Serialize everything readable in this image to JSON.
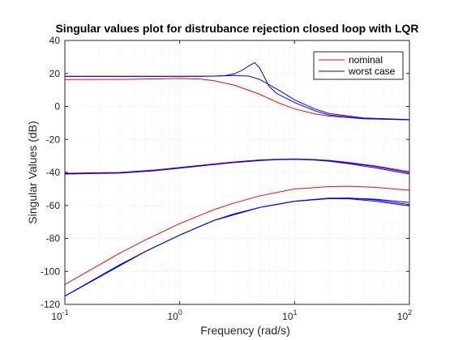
{
  "chart_data": {
    "type": "line",
    "title": "Singular values plot for distrubance rejection closed loop with LQR",
    "xlabel": "Frequency (rad/s)",
    "ylabel": "Singular Values (dB)",
    "xscale": "log",
    "xlim": [
      0.1,
      100
    ],
    "ylim": [
      -120,
      40
    ],
    "xticks": [
      0.1,
      1,
      10,
      100
    ],
    "xtick_labels": [
      {
        "base": "10",
        "exp": "-1"
      },
      {
        "base": "10",
        "exp": "0"
      },
      {
        "base": "10",
        "exp": "1"
      },
      {
        "base": "10",
        "exp": "2"
      }
    ],
    "yticks": [
      -120,
      -100,
      -80,
      -60,
      -40,
      -20,
      0,
      20,
      40
    ],
    "yticks_labels": [
      "-120",
      "-100",
      "-80",
      "-60",
      "-40",
      "-20",
      "0",
      "20",
      "40"
    ],
    "grid": true,
    "minor_grid": true,
    "legend_position": "top-right",
    "legend": [
      {
        "label": "nominal",
        "color": "#ff0000"
      },
      {
        "label": "worst case",
        "color": "#0000ff"
      }
    ],
    "series": [
      {
        "name": "nominal",
        "color": "#ff0000",
        "x": [
          0.1,
          0.3,
          0.6,
          1,
          1.5,
          2,
          3,
          5,
          7,
          10,
          15,
          20,
          40,
          100
        ],
        "y": [
          16.3,
          16.4,
          16.7,
          17.0,
          16.6,
          15.6,
          12.9,
          7.3,
          2.6,
          -1.5,
          -4.5,
          -5.8,
          -7.5,
          -8.1
        ]
      },
      {
        "name": "worst case",
        "color": "#0000ff",
        "x": [
          0.1,
          0.3,
          0.6,
          1,
          1.5,
          2,
          2.5,
          3,
          3.5,
          4,
          4.5,
          5,
          6,
          7,
          10,
          15,
          20,
          40,
          100
        ],
        "y": [
          18.3,
          18.3,
          18.3,
          18.3,
          18.3,
          18.4,
          18.7,
          19.8,
          22.0,
          24.6,
          26.6,
          23.0,
          12.2,
          7.8,
          2.4,
          -2.6,
          -5.2,
          -7.4,
          -8.1
        ]
      },
      {
        "name": "worst case",
        "color": "#0000ff",
        "x": [
          0.1,
          0.5,
          1,
          2,
          3,
          4,
          5,
          7,
          10,
          15,
          20,
          40,
          100
        ],
        "y": [
          18.2,
          18.2,
          18.2,
          18.4,
          18.8,
          18.4,
          16.3,
          10.6,
          4.0,
          -1.5,
          -4.3,
          -7.0,
          -8.0
        ]
      },
      {
        "name": "nominal",
        "color": "#ff0000",
        "x": [
          0.1,
          0.3,
          0.6,
          1,
          2,
          3,
          5,
          7,
          10,
          15,
          20,
          30,
          50,
          100
        ],
        "y": [
          -40.5,
          -40.0,
          -38.5,
          -37.0,
          -34.8,
          -33.6,
          -32.4,
          -32.0,
          -31.8,
          -32.2,
          -32.7,
          -34.0,
          -36.0,
          -39.5
        ]
      },
      {
        "name": "worst case",
        "color": "#0000ff",
        "x": [
          0.1,
          0.3,
          0.6,
          1,
          2,
          3,
          5,
          7,
          10,
          15,
          20,
          30,
          50,
          100
        ],
        "y": [
          -40.8,
          -40.2,
          -38.8,
          -37.2,
          -35.0,
          -33.8,
          -32.6,
          -32.2,
          -32.0,
          -32.3,
          -32.9,
          -34.3,
          -36.4,
          -40.2
        ]
      },
      {
        "name": "worst case",
        "color": "#0000ff",
        "x": [
          0.1,
          0.3,
          0.6,
          1,
          2,
          3,
          5,
          7,
          10,
          15,
          20,
          30,
          50,
          100
        ],
        "y": [
          -41.0,
          -40.4,
          -39.0,
          -37.4,
          -35.2,
          -34.0,
          -32.8,
          -32.3,
          -32.1,
          -32.5,
          -33.2,
          -34.8,
          -37.2,
          -41.0
        ]
      },
      {
        "name": "nominal",
        "color": "#ff0000",
        "x": [
          0.1,
          0.2,
          0.3,
          0.5,
          1,
          2,
          3,
          5,
          10,
          20,
          30,
          50,
          100
        ],
        "y": [
          -108,
          -96,
          -89,
          -81,
          -71,
          -62.5,
          -58.5,
          -54.2,
          -50.0,
          -48.6,
          -48.4,
          -49.0,
          -50.8
        ]
      },
      {
        "name": "worst case",
        "color": "#0000ff",
        "x": [
          0.1,
          0.2,
          0.3,
          0.5,
          1,
          2,
          3,
          5,
          10,
          20,
          30,
          50,
          100
        ],
        "y": [
          -115,
          -103,
          -96,
          -88,
          -78,
          -69,
          -65,
          -61.2,
          -57.5,
          -55.8,
          -55.6,
          -56.2,
          -58.2
        ]
      },
      {
        "name": "worst case",
        "color": "#0000ff",
        "x": [
          0.1,
          0.5,
          1,
          2,
          5,
          10,
          20,
          30,
          50,
          100
        ],
        "y": [
          -115,
          -88,
          -78,
          -69,
          -61.2,
          -57.4,
          -55.6,
          -55.6,
          -56.6,
          -59.5
        ]
      },
      {
        "name": "worst case",
        "color": "#0000ff",
        "x": [
          0.1,
          0.5,
          1,
          2,
          5,
          10,
          20,
          30,
          50,
          100
        ],
        "y": [
          -115,
          -88,
          -78,
          -69,
          -61.2,
          -57.5,
          -55.9,
          -56.0,
          -57.4,
          -60.3
        ]
      }
    ]
  }
}
